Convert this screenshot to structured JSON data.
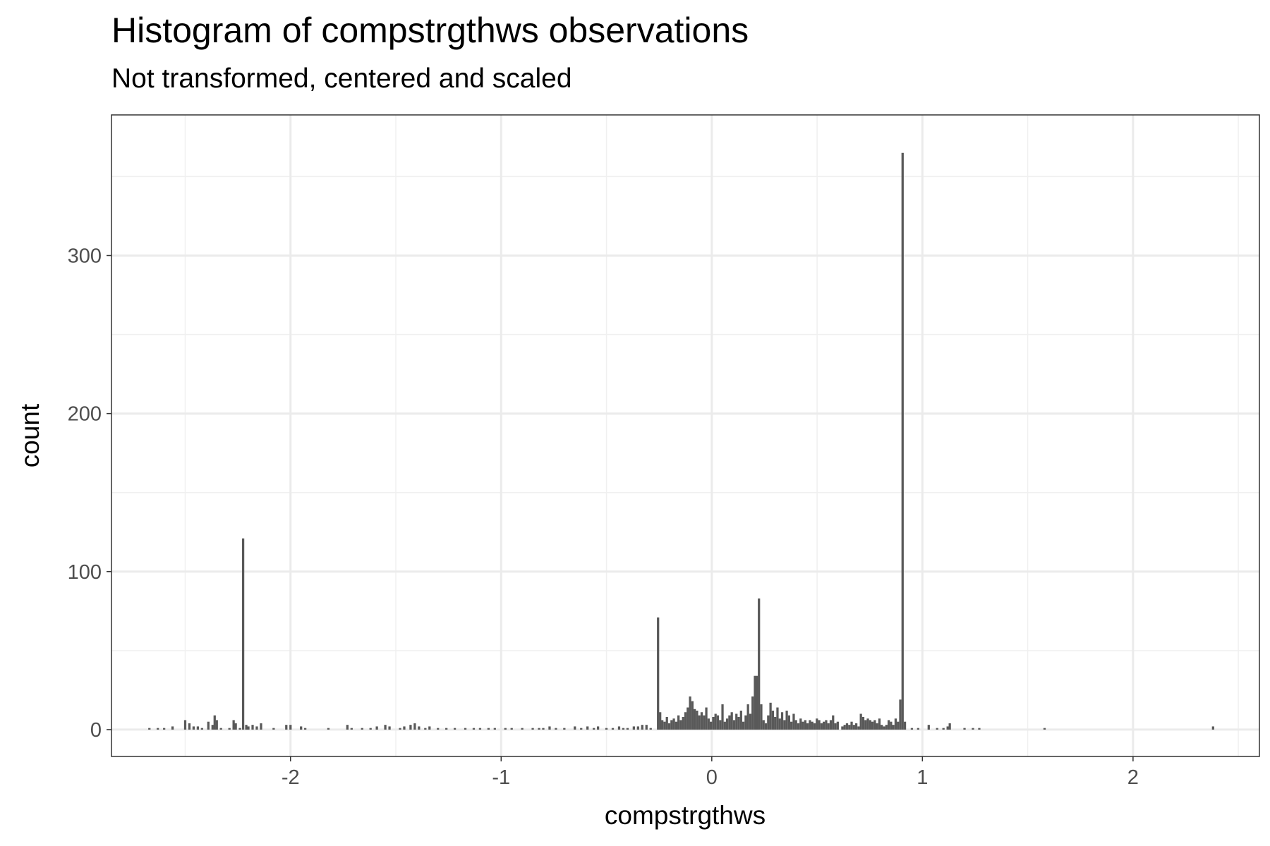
{
  "chart_data": {
    "type": "bar",
    "title": "Histogram of compstrgthws observations",
    "subtitle": "Not transformed, centered and scaled",
    "xlabel": "compstrgthws",
    "ylabel": "count",
    "xlim": [
      -2.85,
      2.6
    ],
    "ylim": [
      -17,
      389
    ],
    "x_ticks": [
      -2,
      -1,
      0,
      1,
      2
    ],
    "x_tick_labels": [
      "-2",
      "-1",
      "0",
      "1",
      "2"
    ],
    "y_ticks": [
      0,
      100,
      200,
      300
    ],
    "y_tick_labels": [
      "0",
      "100",
      "200",
      "300"
    ],
    "grid": true,
    "legend": "none",
    "bar_color": "#595959",
    "bin_width": 0.0109,
    "bins": [
      {
        "x": -2.67,
        "count": 1
      },
      {
        "x": -2.63,
        "count": 1
      },
      {
        "x": -2.6,
        "count": 1
      },
      {
        "x": -2.56,
        "count": 2
      },
      {
        "x": -2.5,
        "count": 6
      },
      {
        "x": -2.48,
        "count": 4
      },
      {
        "x": -2.46,
        "count": 2
      },
      {
        "x": -2.44,
        "count": 2
      },
      {
        "x": -2.42,
        "count": 1
      },
      {
        "x": -2.39,
        "count": 5
      },
      {
        "x": -2.37,
        "count": 3
      },
      {
        "x": -2.36,
        "count": 9
      },
      {
        "x": -2.35,
        "count": 6
      },
      {
        "x": -2.33,
        "count": 1
      },
      {
        "x": -2.29,
        "count": 1
      },
      {
        "x": -2.27,
        "count": 6
      },
      {
        "x": -2.26,
        "count": 4
      },
      {
        "x": -2.24,
        "count": 1
      },
      {
        "x": -2.225,
        "count": 121
      },
      {
        "x": -2.21,
        "count": 3
      },
      {
        "x": -2.2,
        "count": 2
      },
      {
        "x": -2.18,
        "count": 3
      },
      {
        "x": -2.16,
        "count": 2
      },
      {
        "x": -2.14,
        "count": 4
      },
      {
        "x": -2.08,
        "count": 1
      },
      {
        "x": -2.02,
        "count": 3
      },
      {
        "x": -2.0,
        "count": 3
      },
      {
        "x": -1.95,
        "count": 2
      },
      {
        "x": -1.93,
        "count": 1
      },
      {
        "x": -1.82,
        "count": 1
      },
      {
        "x": -1.73,
        "count": 3
      },
      {
        "x": -1.71,
        "count": 1
      },
      {
        "x": -1.66,
        "count": 1
      },
      {
        "x": -1.62,
        "count": 1
      },
      {
        "x": -1.59,
        "count": 2
      },
      {
        "x": -1.55,
        "count": 3
      },
      {
        "x": -1.53,
        "count": 2
      },
      {
        "x": -1.48,
        "count": 1
      },
      {
        "x": -1.46,
        "count": 2
      },
      {
        "x": -1.43,
        "count": 3
      },
      {
        "x": -1.41,
        "count": 4
      },
      {
        "x": -1.39,
        "count": 2
      },
      {
        "x": -1.36,
        "count": 1
      },
      {
        "x": -1.34,
        "count": 2
      },
      {
        "x": -1.3,
        "count": 1
      },
      {
        "x": -1.26,
        "count": 1
      },
      {
        "x": -1.22,
        "count": 1
      },
      {
        "x": -1.17,
        "count": 1
      },
      {
        "x": -1.13,
        "count": 1
      },
      {
        "x": -1.1,
        "count": 1
      },
      {
        "x": -1.06,
        "count": 1
      },
      {
        "x": -1.03,
        "count": 1
      },
      {
        "x": -0.98,
        "count": 1
      },
      {
        "x": -0.95,
        "count": 1
      },
      {
        "x": -0.9,
        "count": 1
      },
      {
        "x": -0.85,
        "count": 1
      },
      {
        "x": -0.82,
        "count": 1
      },
      {
        "x": -0.8,
        "count": 1
      },
      {
        "x": -0.77,
        "count": 2
      },
      {
        "x": -0.74,
        "count": 1
      },
      {
        "x": -0.7,
        "count": 1
      },
      {
        "x": -0.65,
        "count": 2
      },
      {
        "x": -0.62,
        "count": 1
      },
      {
        "x": -0.59,
        "count": 2
      },
      {
        "x": -0.56,
        "count": 1
      },
      {
        "x": -0.54,
        "count": 2
      },
      {
        "x": -0.5,
        "count": 1
      },
      {
        "x": -0.47,
        "count": 1
      },
      {
        "x": -0.44,
        "count": 2
      },
      {
        "x": -0.42,
        "count": 1
      },
      {
        "x": -0.4,
        "count": 1
      },
      {
        "x": -0.37,
        "count": 2
      },
      {
        "x": -0.35,
        "count": 2
      },
      {
        "x": -0.33,
        "count": 3
      },
      {
        "x": -0.31,
        "count": 3
      },
      {
        "x": -0.29,
        "count": 1
      },
      {
        "x": -0.255,
        "count": 71
      },
      {
        "x": -0.245,
        "count": 11
      },
      {
        "x": -0.235,
        "count": 6
      },
      {
        "x": -0.224,
        "count": 5
      },
      {
        "x": -0.213,
        "count": 8
      },
      {
        "x": -0.202,
        "count": 4
      },
      {
        "x": -0.191,
        "count": 6
      },
      {
        "x": -0.18,
        "count": 7
      },
      {
        "x": -0.169,
        "count": 5
      },
      {
        "x": -0.158,
        "count": 9
      },
      {
        "x": -0.147,
        "count": 6
      },
      {
        "x": -0.136,
        "count": 8
      },
      {
        "x": -0.125,
        "count": 11
      },
      {
        "x": -0.114,
        "count": 14
      },
      {
        "x": -0.103,
        "count": 21
      },
      {
        "x": -0.092,
        "count": 18
      },
      {
        "x": -0.081,
        "count": 13
      },
      {
        "x": -0.07,
        "count": 12
      },
      {
        "x": -0.059,
        "count": 9
      },
      {
        "x": -0.048,
        "count": 11
      },
      {
        "x": -0.037,
        "count": 9
      },
      {
        "x": -0.026,
        "count": 14
      },
      {
        "x": -0.015,
        "count": 7
      },
      {
        "x": -0.004,
        "count": 5
      },
      {
        "x": 0.007,
        "count": 8
      },
      {
        "x": 0.018,
        "count": 10
      },
      {
        "x": 0.029,
        "count": 9
      },
      {
        "x": 0.04,
        "count": 6
      },
      {
        "x": 0.051,
        "count": 16
      },
      {
        "x": 0.062,
        "count": 5
      },
      {
        "x": 0.073,
        "count": 7
      },
      {
        "x": 0.084,
        "count": 9
      },
      {
        "x": 0.095,
        "count": 11
      },
      {
        "x": 0.106,
        "count": 6
      },
      {
        "x": 0.117,
        "count": 10
      },
      {
        "x": 0.128,
        "count": 8
      },
      {
        "x": 0.139,
        "count": 12
      },
      {
        "x": 0.15,
        "count": 5
      },
      {
        "x": 0.161,
        "count": 9
      },
      {
        "x": 0.172,
        "count": 16
      },
      {
        "x": 0.183,
        "count": 10
      },
      {
        "x": 0.194,
        "count": 21
      },
      {
        "x": 0.205,
        "count": 34
      },
      {
        "x": 0.214,
        "count": 34
      },
      {
        "x": 0.224,
        "count": 83
      },
      {
        "x": 0.235,
        "count": 16
      },
      {
        "x": 0.246,
        "count": 6
      },
      {
        "x": 0.257,
        "count": 4
      },
      {
        "x": 0.268,
        "count": 9
      },
      {
        "x": 0.279,
        "count": 17
      },
      {
        "x": 0.29,
        "count": 12
      },
      {
        "x": 0.301,
        "count": 8
      },
      {
        "x": 0.312,
        "count": 14
      },
      {
        "x": 0.323,
        "count": 7
      },
      {
        "x": 0.334,
        "count": 11
      },
      {
        "x": 0.345,
        "count": 6
      },
      {
        "x": 0.356,
        "count": 12
      },
      {
        "x": 0.367,
        "count": 9
      },
      {
        "x": 0.378,
        "count": 5
      },
      {
        "x": 0.389,
        "count": 10
      },
      {
        "x": 0.4,
        "count": 6
      },
      {
        "x": 0.411,
        "count": 4
      },
      {
        "x": 0.422,
        "count": 7
      },
      {
        "x": 0.433,
        "count": 5
      },
      {
        "x": 0.444,
        "count": 6
      },
      {
        "x": 0.455,
        "count": 4
      },
      {
        "x": 0.466,
        "count": 6
      },
      {
        "x": 0.477,
        "count": 5
      },
      {
        "x": 0.488,
        "count": 4
      },
      {
        "x": 0.499,
        "count": 7
      },
      {
        "x": 0.51,
        "count": 6
      },
      {
        "x": 0.521,
        "count": 4
      },
      {
        "x": 0.532,
        "count": 5
      },
      {
        "x": 0.543,
        "count": 6
      },
      {
        "x": 0.554,
        "count": 4
      },
      {
        "x": 0.565,
        "count": 6
      },
      {
        "x": 0.576,
        "count": 9
      },
      {
        "x": 0.587,
        "count": 4
      },
      {
        "x": 0.598,
        "count": 5
      },
      {
        "x": 0.62,
        "count": 2
      },
      {
        "x": 0.631,
        "count": 3
      },
      {
        "x": 0.642,
        "count": 4
      },
      {
        "x": 0.653,
        "count": 3
      },
      {
        "x": 0.664,
        "count": 5
      },
      {
        "x": 0.675,
        "count": 3
      },
      {
        "x": 0.686,
        "count": 4
      },
      {
        "x": 0.697,
        "count": 2
      },
      {
        "x": 0.708,
        "count": 10
      },
      {
        "x": 0.719,
        "count": 8
      },
      {
        "x": 0.73,
        "count": 6
      },
      {
        "x": 0.741,
        "count": 7
      },
      {
        "x": 0.752,
        "count": 6
      },
      {
        "x": 0.763,
        "count": 5
      },
      {
        "x": 0.774,
        "count": 6
      },
      {
        "x": 0.785,
        "count": 4
      },
      {
        "x": 0.796,
        "count": 7
      },
      {
        "x": 0.807,
        "count": 3
      },
      {
        "x": 0.818,
        "count": 2
      },
      {
        "x": 0.829,
        "count": 3
      },
      {
        "x": 0.84,
        "count": 6
      },
      {
        "x": 0.851,
        "count": 5
      },
      {
        "x": 0.862,
        "count": 3
      },
      {
        "x": 0.873,
        "count": 7
      },
      {
        "x": 0.884,
        "count": 5
      },
      {
        "x": 0.895,
        "count": 19
      },
      {
        "x": 0.906,
        "count": 365
      },
      {
        "x": 0.917,
        "count": 5
      },
      {
        "x": 0.95,
        "count": 1
      },
      {
        "x": 0.98,
        "count": 1
      },
      {
        "x": 1.03,
        "count": 3
      },
      {
        "x": 1.07,
        "count": 1
      },
      {
        "x": 1.1,
        "count": 1
      },
      {
        "x": 1.12,
        "count": 2
      },
      {
        "x": 1.13,
        "count": 4
      },
      {
        "x": 1.2,
        "count": 1
      },
      {
        "x": 1.24,
        "count": 1
      },
      {
        "x": 1.27,
        "count": 1
      },
      {
        "x": 1.58,
        "count": 1
      },
      {
        "x": 2.38,
        "count": 2
      }
    ]
  }
}
